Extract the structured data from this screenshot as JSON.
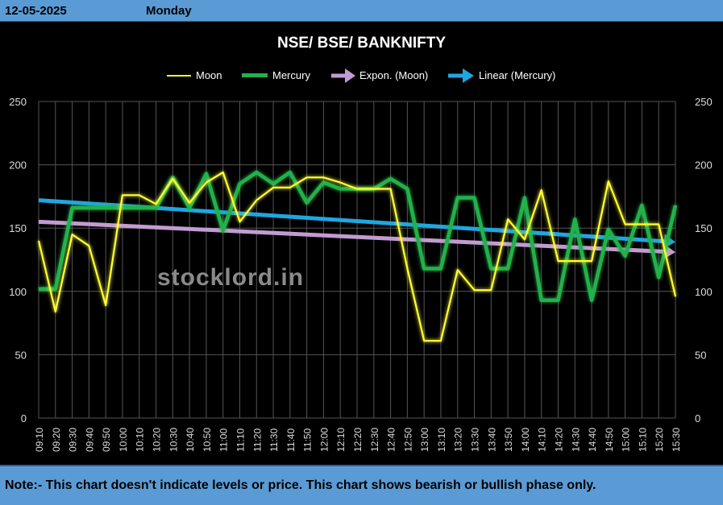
{
  "header": {
    "date": "12-05-2025",
    "day": "Monday"
  },
  "footer": {
    "note": "Note:- This chart doesn't indicate levels or price. This chart shows bearish or bullish phase only."
  },
  "watermark": "stocklord.in",
  "colors": {
    "moon": "#ffff33",
    "mercury": "#22b14c",
    "expon": "#c39bd3",
    "linear": "#1ea7e1",
    "header": "#5b9bd5"
  },
  "chart_data": {
    "type": "line",
    "title": "NSE/ BSE/ BANKNIFTY",
    "ylim": [
      0,
      250
    ],
    "y_ticks": [
      "0",
      "50",
      "100",
      "150",
      "200",
      "250"
    ],
    "grid": true,
    "legend_position": "top",
    "x": [
      "09:10",
      "09:20",
      "09:30",
      "09:40",
      "09:50",
      "10:00",
      "10:10",
      "10:20",
      "10:30",
      "10:40",
      "10:50",
      "11:00",
      "11:10",
      "11:20",
      "11:30",
      "11:40",
      "11:50",
      "12:00",
      "12:10",
      "12:20",
      "12:30",
      "12:40",
      "12:50",
      "13:00",
      "13:10",
      "13:20",
      "13:30",
      "13:40",
      "13:50",
      "14:00",
      "14:10",
      "14:20",
      "14:30",
      "14:40",
      "14:50",
      "15:00",
      "15:10",
      "15:20",
      "15:30"
    ],
    "series": [
      {
        "name": "Moon",
        "color": "#ffff33",
        "values": [
          140,
          84,
          145,
          136,
          89,
          176,
          176,
          169,
          189,
          170,
          186,
          194,
          155,
          172,
          182,
          182,
          190,
          190,
          186,
          181,
          181,
          181,
          118,
          61,
          61,
          117,
          101,
          101,
          157,
          141,
          180,
          124,
          124,
          124,
          187,
          153,
          153,
          153,
          96
        ]
      },
      {
        "name": "Mercury",
        "color": "#22b14c",
        "values": [
          102,
          102,
          166,
          166,
          166,
          166,
          166,
          166,
          190,
          166,
          193,
          148,
          185,
          194,
          185,
          194,
          170,
          186,
          181,
          181,
          181,
          189,
          181,
          118,
          118,
          174,
          174,
          118,
          118,
          174,
          93,
          93,
          157,
          93,
          149,
          128,
          168,
          111,
          168
        ]
      }
    ],
    "trendlines": [
      {
        "name": "Expon. (Moon)",
        "color": "#c39bd3",
        "start": 155,
        "end": 131
      },
      {
        "name": "Linear (Mercury)",
        "color": "#1ea7e1",
        "start": 172,
        "end": 139
      }
    ]
  }
}
